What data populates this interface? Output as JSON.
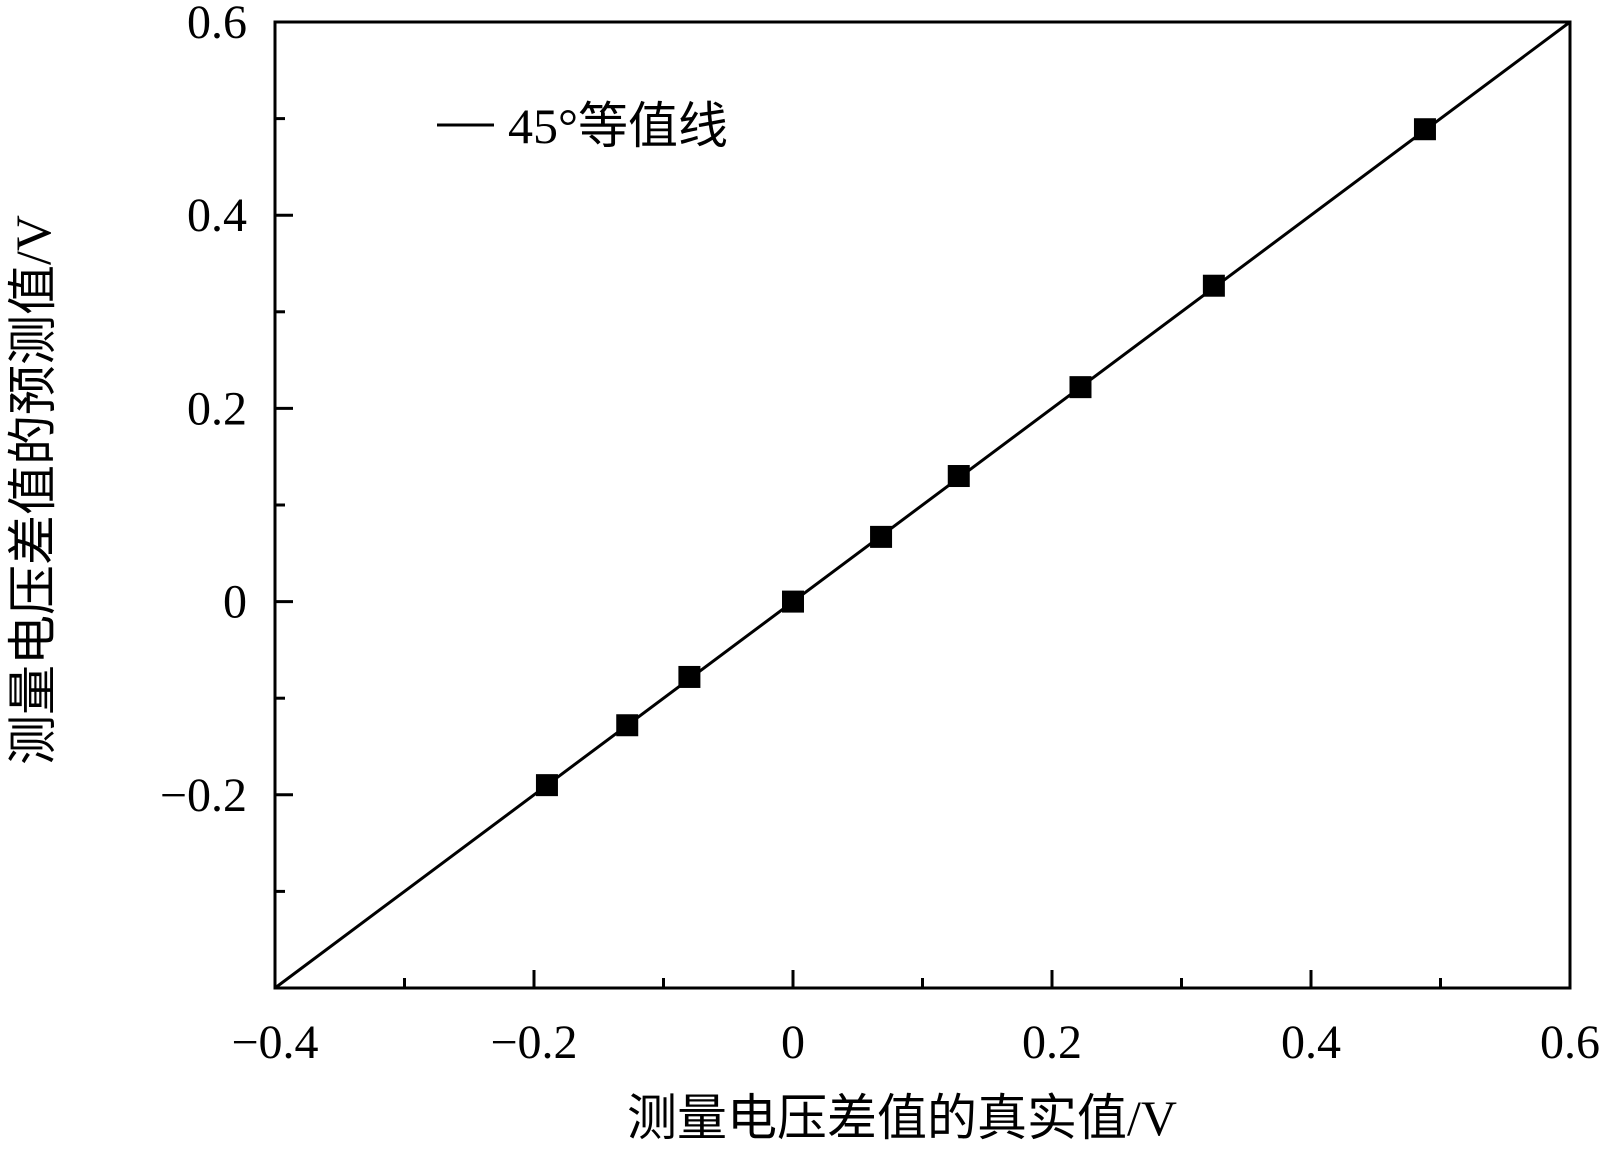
{
  "chart_data": {
    "type": "scatter",
    "xlabel": "测量电压差值的真实值/V",
    "ylabel": "测量电压差值的预测值/V",
    "xlim": [
      -0.4,
      0.6
    ],
    "ylim": [
      -0.4,
      0.6
    ],
    "x_ticks": [
      -0.4,
      -0.2,
      0,
      0.2,
      0.4,
      0.6
    ],
    "x_tick_labels": [
      "−0.4",
      "−0.2",
      "0",
      "0.2",
      "0.4",
      "0.6"
    ],
    "y_ticks": [
      -0.2,
      0,
      0.2,
      0.4,
      0.6
    ],
    "y_tick_labels": [
      "−0.2",
      "0",
      "0.2",
      "0.4",
      "0.6"
    ],
    "reference_line": {
      "name": "45°等值线",
      "from": [
        -0.4,
        -0.4
      ],
      "to": [
        0.6,
        0.6
      ]
    },
    "legend_position": "top-left",
    "grid": false,
    "points": {
      "x": [
        -0.19,
        -0.128,
        -0.08,
        0.0,
        0.068,
        0.128,
        0.222,
        0.325,
        0.488
      ],
      "y": [
        -0.19,
        -0.128,
        -0.078,
        0.0,
        0.067,
        0.13,
        0.222,
        0.327,
        0.489
      ]
    },
    "marker": {
      "shape": "square",
      "color": "#000000"
    }
  }
}
